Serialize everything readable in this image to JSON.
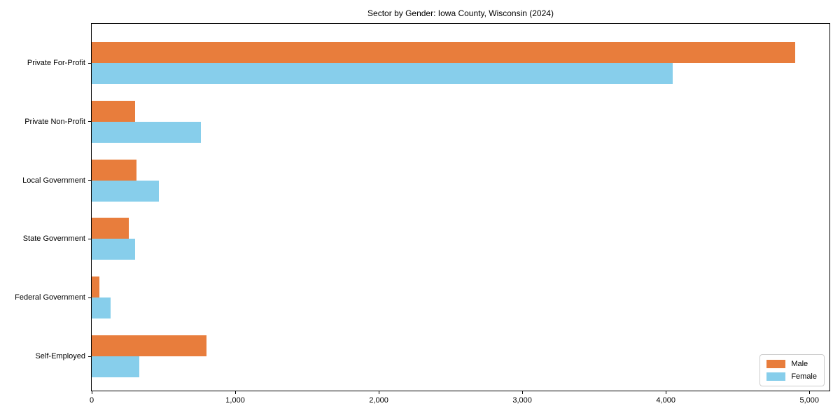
{
  "chart_data": {
    "type": "bar",
    "orientation": "horizontal",
    "title": "Sector by Gender: Iowa County, Wisconsin (2024)",
    "categories": [
      "Private For-Profit",
      "Private Non-Profit",
      "Local Government",
      "State Government",
      "Federal Government",
      "Self-Employed"
    ],
    "series": [
      {
        "name": "Male",
        "color": "#e87d3c",
        "values": [
          4900,
          300,
          310,
          260,
          55,
          800
        ]
      },
      {
        "name": "Female",
        "color": "#87ceeb",
        "values": [
          4050,
          760,
          470,
          300,
          130,
          330
        ]
      }
    ],
    "xlabel": "",
    "ylabel": "",
    "x_ticks": [
      0,
      1000,
      2000,
      3000,
      4000,
      5000
    ],
    "x_tick_labels": [
      "0",
      "1,000",
      "2,000",
      "3,000",
      "4,000",
      "5,000"
    ],
    "xlim": [
      0,
      5150
    ],
    "grid": false,
    "legend_position": "lower right"
  },
  "colors": {
    "background": "#ffffff",
    "axis": "#000000",
    "text": "#000000",
    "legend_border": "#cccccc",
    "male": "#e87d3c",
    "female": "#87ceeb"
  }
}
